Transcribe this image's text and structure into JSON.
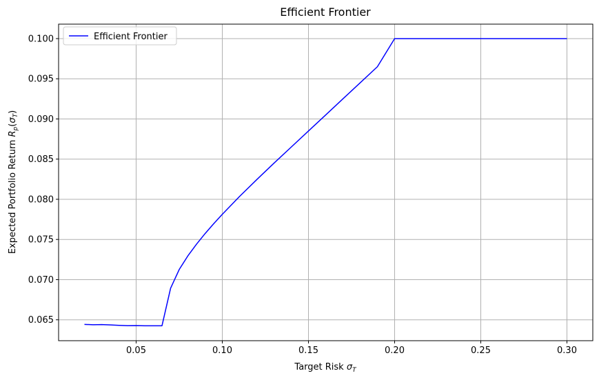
{
  "chart_data": {
    "type": "line",
    "title": "Efficient Frontier",
    "xlabel": {
      "text": "Target Risk ",
      "sym": "σ",
      "sub": "T"
    },
    "ylabel": {
      "text": "Expected Portfolio Return ",
      "sym": "R",
      "sub": "p",
      "open": "(",
      "sym2": "σ",
      "sub2": "T",
      "close": ")"
    },
    "xlim": [
      0.005,
      0.315
    ],
    "ylim": [
      0.0624,
      0.1018
    ],
    "xticks": [
      0.05,
      0.1,
      0.15,
      0.2,
      0.25,
      0.3
    ],
    "xtick_labels": [
      "0.05",
      "0.10",
      "0.15",
      "0.20",
      "0.25",
      "0.30"
    ],
    "yticks": [
      0.065,
      0.07,
      0.075,
      0.08,
      0.085,
      0.09,
      0.095,
      0.1
    ],
    "ytick_labels": [
      "0.065",
      "0.070",
      "0.075",
      "0.080",
      "0.085",
      "0.090",
      "0.095",
      "0.100"
    ],
    "grid": true,
    "legend_position": "top-left",
    "series": [
      {
        "name": "Efficient Frontier",
        "color": "#0000ff",
        "x": [
          0.02,
          0.025,
          0.03,
          0.035,
          0.04,
          0.045,
          0.05,
          0.055,
          0.06,
          0.065,
          0.07,
          0.075,
          0.08,
          0.085,
          0.09,
          0.095,
          0.1,
          0.11,
          0.12,
          0.13,
          0.14,
          0.15,
          0.16,
          0.17,
          0.18,
          0.19,
          0.2,
          0.25,
          0.3
        ],
        "y": [
          0.06443,
          0.06438,
          0.06441,
          0.06436,
          0.06431,
          0.06427,
          0.06428,
          0.06426,
          0.06426,
          0.06426,
          0.06893,
          0.07126,
          0.07295,
          0.0744,
          0.07573,
          0.07696,
          0.07813,
          0.08035,
          0.08245,
          0.0845,
          0.0865,
          0.0885,
          0.0905,
          0.0925,
          0.0945,
          0.0965,
          0.1,
          0.1,
          0.1
        ]
      }
    ]
  }
}
